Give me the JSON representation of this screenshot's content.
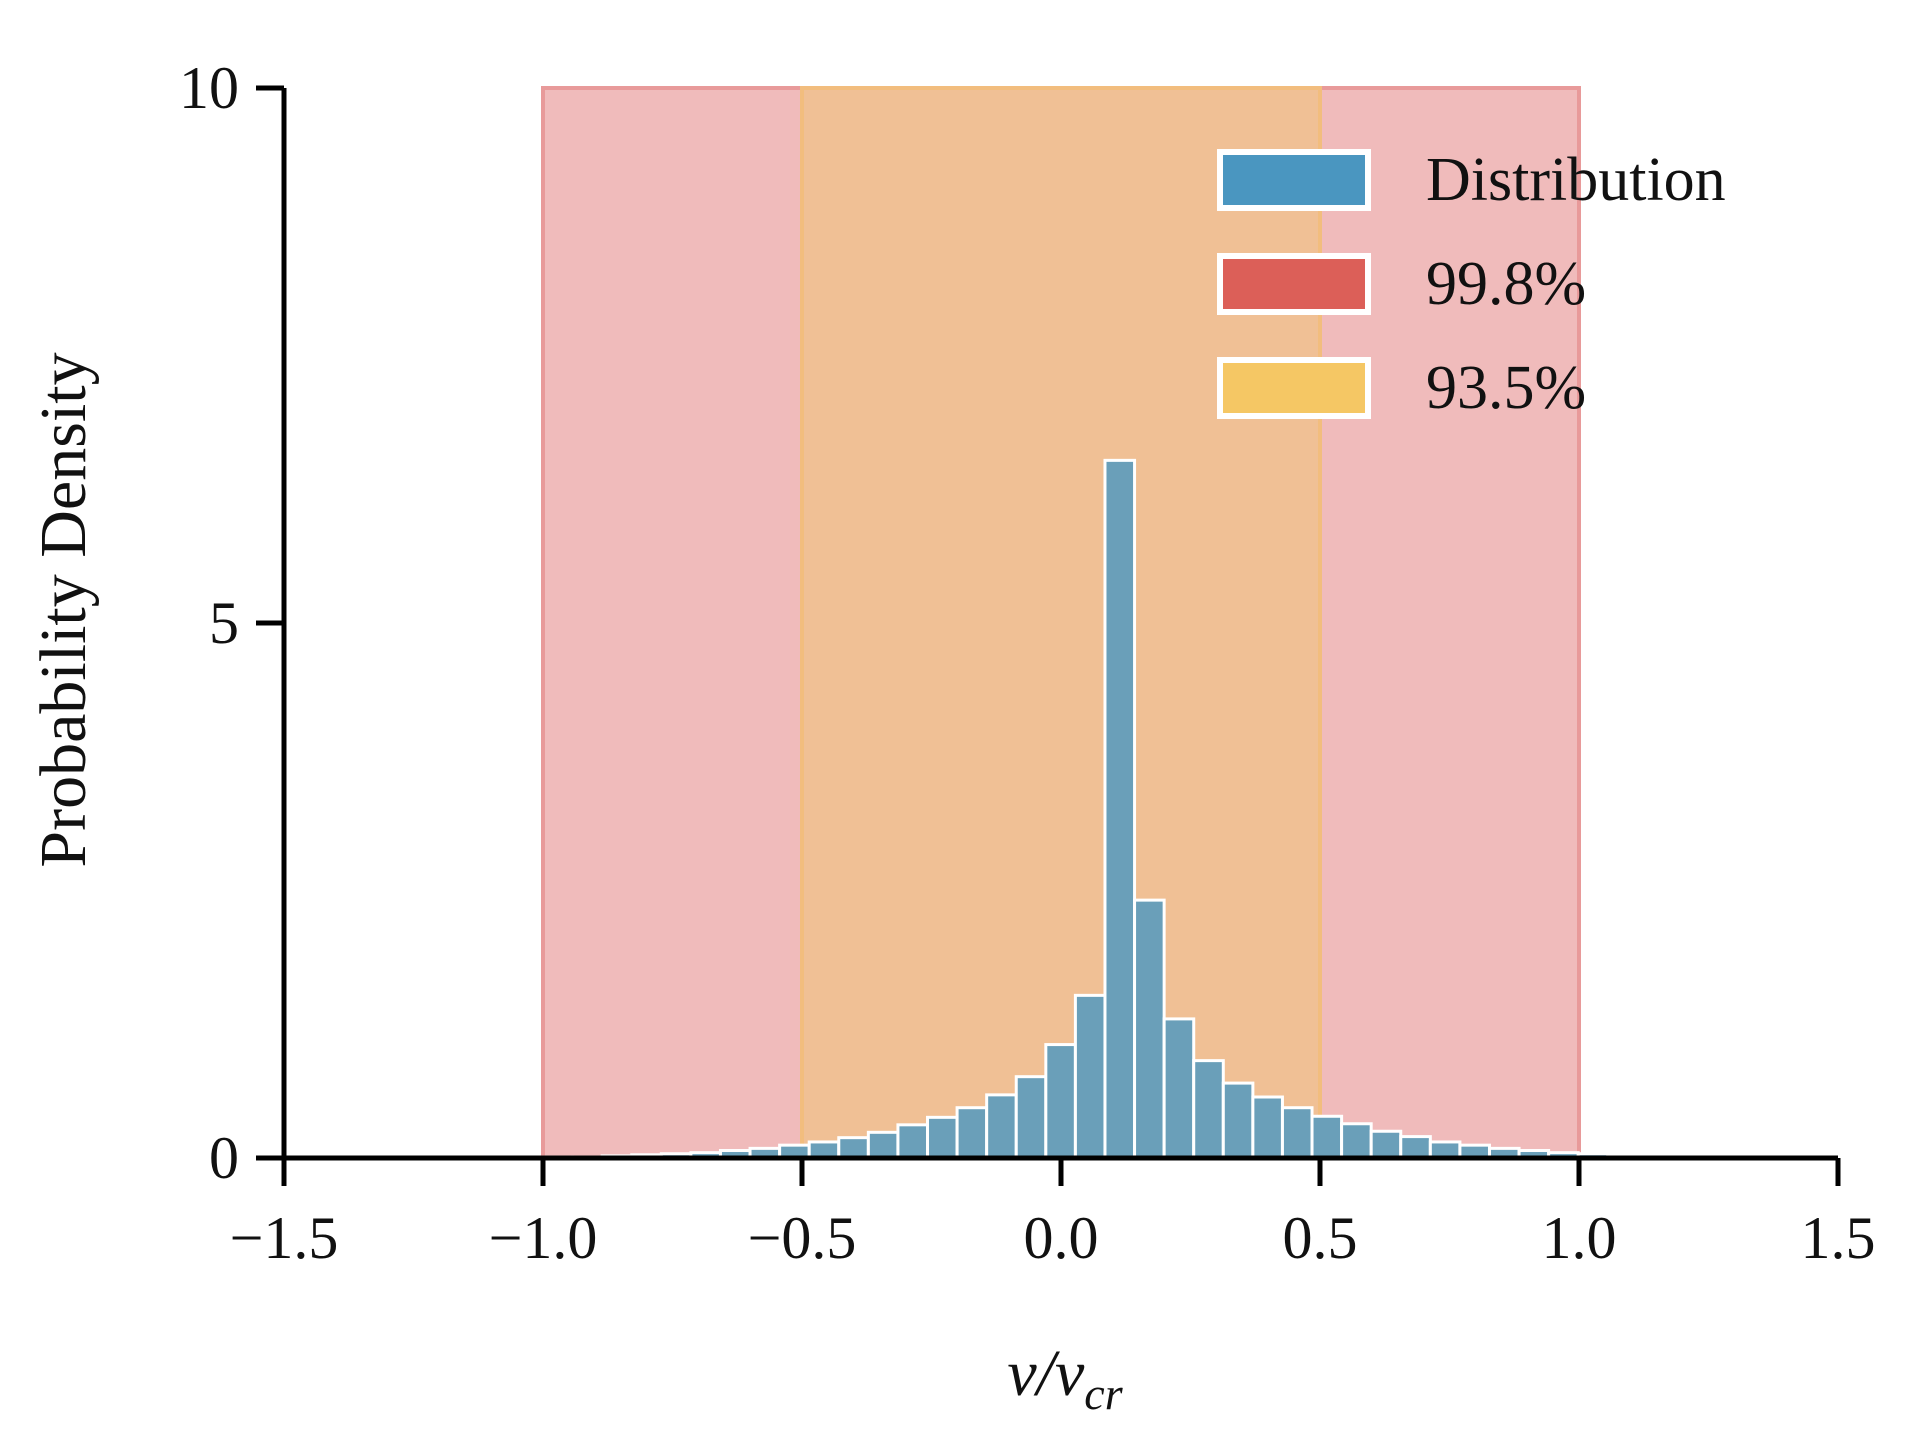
{
  "chart_data": {
    "type": "bar",
    "title": "",
    "xlabel": "v/v_cr",
    "xlabel_parts": {
      "main": "v/v",
      "subscript": "cr"
    },
    "ylabel": "Probability Density",
    "xlim": [
      -1.5,
      1.5
    ],
    "ylim": [
      0,
      10
    ],
    "xticks": [
      -1.5,
      -1.0,
      -0.5,
      0.0,
      0.5,
      1.0,
      1.5
    ],
    "xtick_labels": [
      "−1.5",
      "−1.0",
      "−0.5",
      "0.0",
      "0.5",
      "1.0",
      "1.5"
    ],
    "yticks": [
      0,
      5,
      10
    ],
    "ytick_labels": [
      "0",
      "5",
      "10"
    ],
    "grid": false,
    "legend_position": "top-right",
    "series": [
      {
        "name": "Distribution",
        "kind": "histogram",
        "color": "#6a9fb9",
        "bin_width": 0.0571,
        "bin_start": -1.0,
        "values": [
          0.01,
          0.01,
          0.02,
          0.03,
          0.04,
          0.05,
          0.07,
          0.09,
          0.12,
          0.15,
          0.19,
          0.24,
          0.31,
          0.38,
          0.47,
          0.59,
          0.76,
          1.06,
          1.52,
          6.52,
          2.41,
          1.3,
          0.91,
          0.7,
          0.57,
          0.47,
          0.39,
          0.32,
          0.25,
          0.2,
          0.15,
          0.12,
          0.09,
          0.07,
          0.05,
          0.04,
          0.03,
          0.02,
          0.01,
          0.01
        ]
      }
    ],
    "bands": [
      {
        "name": "99.8%",
        "from": -1.0,
        "to": 1.0,
        "color": "#f0bbbb",
        "edge_color": "#e89a9a",
        "legend_color": "#dc5f58"
      },
      {
        "name": "93.5%",
        "from": -0.5,
        "to": 0.5,
        "color": "#f0c095",
        "edge_color": "#f2bd7e",
        "legend_color": "#f5c764"
      }
    ],
    "legend": [
      {
        "label": "Distribution",
        "color": "#4a96c0"
      },
      {
        "label": "99.8%",
        "color": "#dc5f58"
      },
      {
        "label": "93.5%",
        "color": "#f5c764"
      }
    ]
  }
}
